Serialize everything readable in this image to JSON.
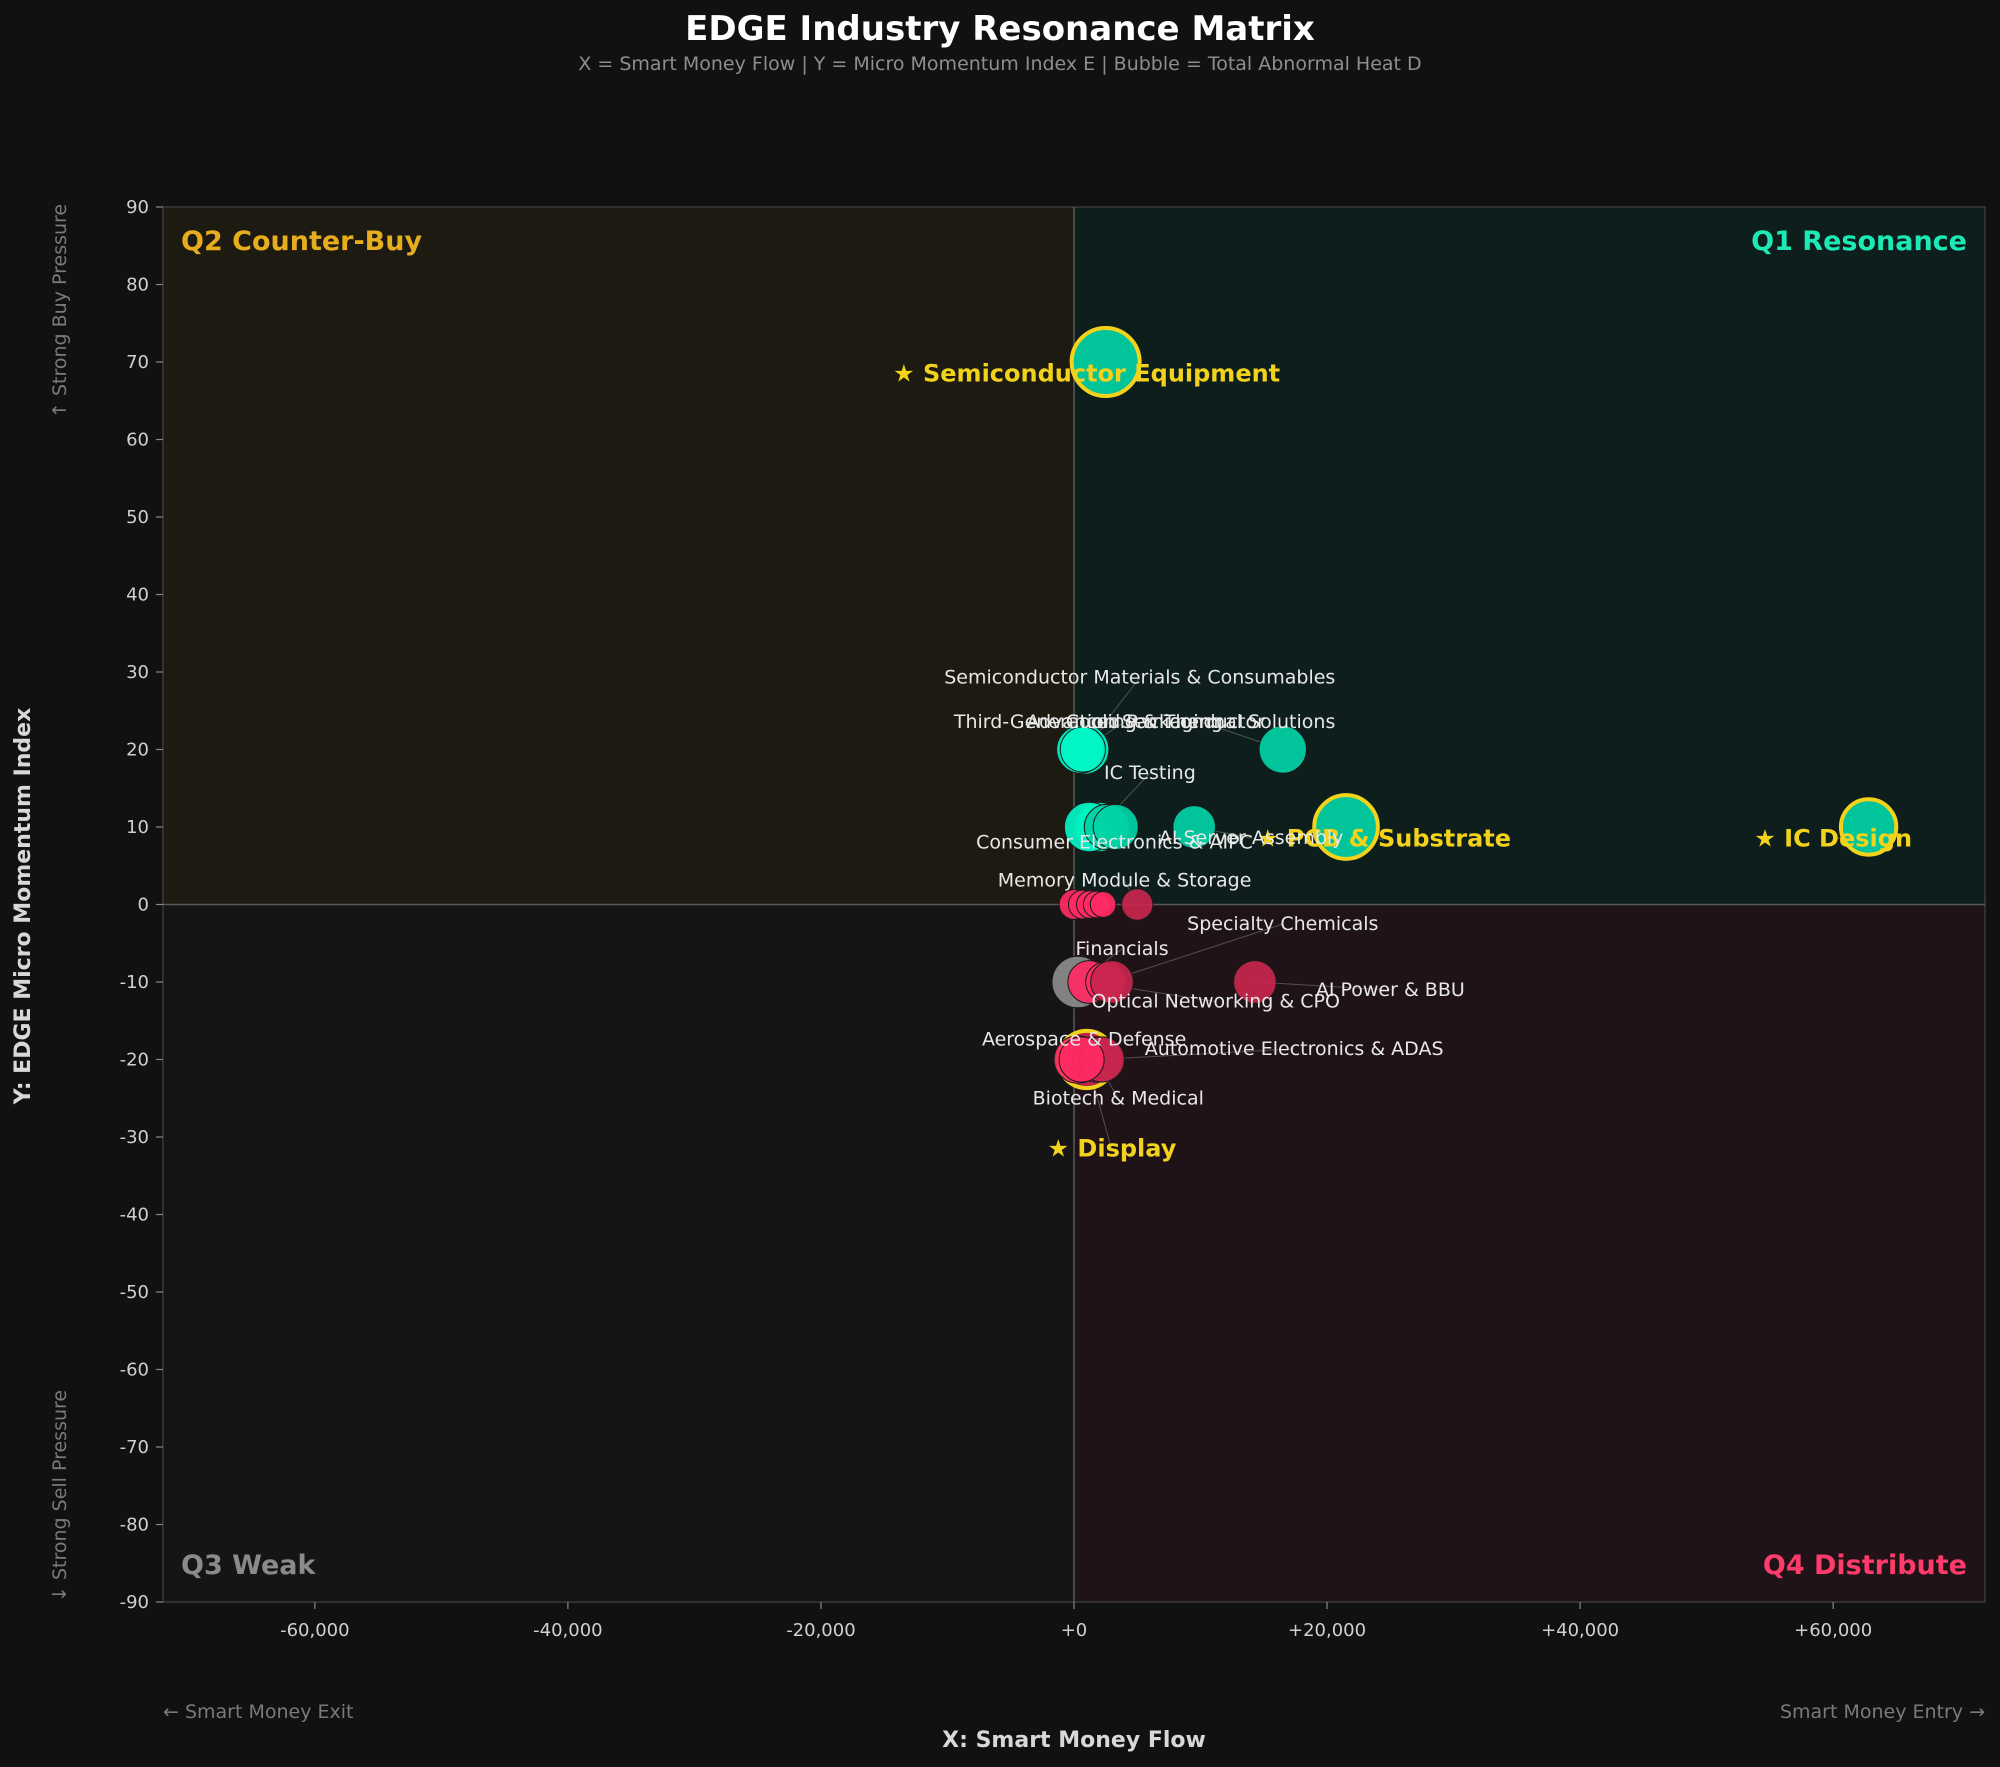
{
  "title": "EDGE Industry Resonance Matrix",
  "subtitle": "X = Smart Money Flow  |  Y = Micro Momentum Index E  |  Bubble = Total Abnormal Heat D",
  "colors": {
    "background": "#111111",
    "plot_bg": "#151515",
    "q1": "#0e1e1c",
    "q2": "#1c1a11",
    "q3": "#151515",
    "q4": "#201317",
    "q1_label": "#1de9b6",
    "q2_label": "#e6ad1e",
    "q3_label": "#8a8a8a",
    "q4_label": "#ff3b6b",
    "teal": "#00d3a6",
    "teal_light": "#00f5c4",
    "pink": "#ff2a63",
    "crimson": "#c8264e",
    "grey": "#8c8c8c",
    "star": "#f2d21b"
  },
  "quadrants": {
    "q1": "Q1 Resonance",
    "q2": "Q2 Counter-Buy",
    "q3": "Q3 Weak",
    "q4": "Q4 Distribute"
  },
  "hints": {
    "top": "↑ Strong Buy Pressure",
    "bottom": "↓ Strong Sell Pressure",
    "left": "← Smart Money Exit",
    "right": "Smart Money Entry →"
  },
  "chart_data": {
    "type": "scatter",
    "title": "EDGE Industry Resonance Matrix",
    "xlabel": "X: Smart Money Flow",
    "ylabel": "Y: EDGE Micro Momentum Index",
    "xlim": [
      -72000,
      72000
    ],
    "ylim": [
      -90,
      90
    ],
    "x_ticks": [
      {
        "v": -60000,
        "t": "-60,000"
      },
      {
        "v": -40000,
        "t": "-40,000"
      },
      {
        "v": -20000,
        "t": "-20,000"
      },
      {
        "v": 0,
        "t": "+0"
      },
      {
        "v": 20000,
        "t": "+20,000"
      },
      {
        "v": 40000,
        "t": "+40,000"
      },
      {
        "v": 60000,
        "t": "+60,000"
      }
    ],
    "y_ticks": [
      {
        "v": 90,
        "t": "90"
      },
      {
        "v": 80,
        "t": "80"
      },
      {
        "v": 70,
        "t": "70"
      },
      {
        "v": 60,
        "t": "60"
      },
      {
        "v": 50,
        "t": "50"
      },
      {
        "v": 40,
        "t": "40"
      },
      {
        "v": 30,
        "t": "30"
      },
      {
        "v": 20,
        "t": "20"
      },
      {
        "v": 10,
        "t": "10"
      },
      {
        "v": 0,
        "t": "0"
      },
      {
        "v": -10,
        "t": "-10"
      },
      {
        "v": -20,
        "t": "-20"
      },
      {
        "v": -30,
        "t": "-30"
      },
      {
        "v": -40,
        "t": "-40"
      },
      {
        "v": -50,
        "t": "-50"
      },
      {
        "v": -60,
        "t": "-60"
      },
      {
        "v": -70,
        "t": "-70"
      },
      {
        "v": -80,
        "t": "-80"
      },
      {
        "v": -90,
        "t": "-90"
      }
    ],
    "points": [
      {
        "name": "★ Semiconductor Equipment",
        "x": 2500,
        "y": 70,
        "heat": 100,
        "color": "teal",
        "star": true,
        "lx": 1000,
        "ly": 67.5
      },
      {
        "name": "★ IC Design",
        "x": 62800,
        "y": 10,
        "heat": 60,
        "color": "teal",
        "star": true,
        "lx": 60000,
        "ly": 7.5
      },
      {
        "name": "★ PCB & Substrate",
        "x": 21500,
        "y": 10,
        "heat": 85,
        "color": "teal",
        "star": true,
        "lx": 24500,
        "ly": 7.5
      },
      {
        "name": "★ Display",
        "x": 1000,
        "y": -20,
        "heat": 65,
        "color": "crimson",
        "star": true,
        "lx": 3000,
        "ly": -32.5
      },
      {
        "name": "Semiconductor Materials & Consumables",
        "x": 800,
        "y": 20,
        "heat": 45,
        "color": "teal_light",
        "star": false,
        "lx": 5200,
        "ly": 28.5
      },
      {
        "name": "Third-Generation Semiconductor",
        "x": 500,
        "y": 20,
        "heat": 40,
        "color": "teal_light",
        "star": false,
        "lx": 2800,
        "ly": 22.8
      },
      {
        "name": "Advanced Packaging",
        "x": 700,
        "y": 20,
        "heat": 35,
        "color": "teal_light",
        "star": false,
        "lx": 4000,
        "ly": 22.8
      },
      {
        "name": "Cooling & Thermal Solutions",
        "x": 16500,
        "y": 20,
        "heat": 40,
        "color": "teal",
        "star": false,
        "lx": 10000,
        "ly": 22.8
      },
      {
        "name": "IC Testing",
        "x": 2000,
        "y": 10,
        "heat": 45,
        "color": "teal",
        "star": false,
        "lx": 6000,
        "ly": 16.2
      },
      {
        "name": "Consumer Electronics & AIPC",
        "x": 1200,
        "y": 10,
        "heat": 45,
        "color": "teal_light",
        "star": false,
        "lx": 3200,
        "ly": 7.2
      },
      {
        "name": "AI Server Assembly",
        "x": 9500,
        "y": 10,
        "heat": 30,
        "color": "teal",
        "star": false,
        "lx": 14000,
        "ly": 7.8
      },
      {
        "name": "Memory Module & Storage",
        "x": 5000,
        "y": 0,
        "heat": 12,
        "color": "crimson",
        "star": false,
        "lx": 4000,
        "ly": 2.3
      },
      {
        "name": "Specialty Chemicals",
        "x": 2500,
        "y": -10,
        "heat": 25,
        "color": "pink",
        "star": false,
        "lx": 16500,
        "ly": -3.3
      },
      {
        "name": "Financials",
        "x": 300,
        "y": -10,
        "heat": 50,
        "color": "grey",
        "star": false,
        "lx": 3800,
        "ly": -6.5
      },
      {
        "name": "AI Power & BBU",
        "x": 14300,
        "y": -10,
        "heat": 30,
        "color": "crimson",
        "star": false,
        "lx": 25000,
        "ly": -11.8
      },
      {
        "name": "Optical Networking & CPO",
        "x": 1200,
        "y": -10,
        "heat": 30,
        "color": "pink",
        "star": false,
        "lx": 11200,
        "ly": -13.3
      },
      {
        "name": "Aerospace & Defense",
        "x": 300,
        "y": -20,
        "heat": 40,
        "color": "pink",
        "star": false,
        "lx": 800,
        "ly": -18.2
      },
      {
        "name": "Automotive Electronics & ADAS",
        "x": 2000,
        "y": -20,
        "heat": 35,
        "color": "pink",
        "star": false,
        "lx": 17400,
        "ly": -19.4
      },
      {
        "name": "Biotech & Medical",
        "x": 1700,
        "y": -20,
        "heat": 35,
        "color": "crimson",
        "star": false,
        "lx": 3500,
        "ly": -25.8
      }
    ],
    "small_points": [
      {
        "x": 0,
        "y": 0,
        "heat": 10,
        "color": "pink"
      },
      {
        "x": 700,
        "y": 0,
        "heat": 9,
        "color": "pink"
      },
      {
        "x": 1300,
        "y": 0,
        "heat": 8,
        "color": "pink"
      },
      {
        "x": 1800,
        "y": 0,
        "heat": 7,
        "color": "pink"
      },
      {
        "x": 2300,
        "y": 0,
        "heat": 6,
        "color": "pink"
      },
      {
        "x": 2600,
        "y": 10,
        "heat": 35,
        "color": "teal"
      },
      {
        "x": 3300,
        "y": 10,
        "heat": 35,
        "color": "teal"
      },
      {
        "x": 3000,
        "y": -10,
        "heat": 30,
        "color": "crimson"
      },
      {
        "x": 2200,
        "y": -20,
        "heat": 35,
        "color": "crimson"
      },
      {
        "x": 600,
        "y": -20,
        "heat": 35,
        "color": "pink"
      }
    ],
    "grid": false,
    "legend": "none"
  }
}
